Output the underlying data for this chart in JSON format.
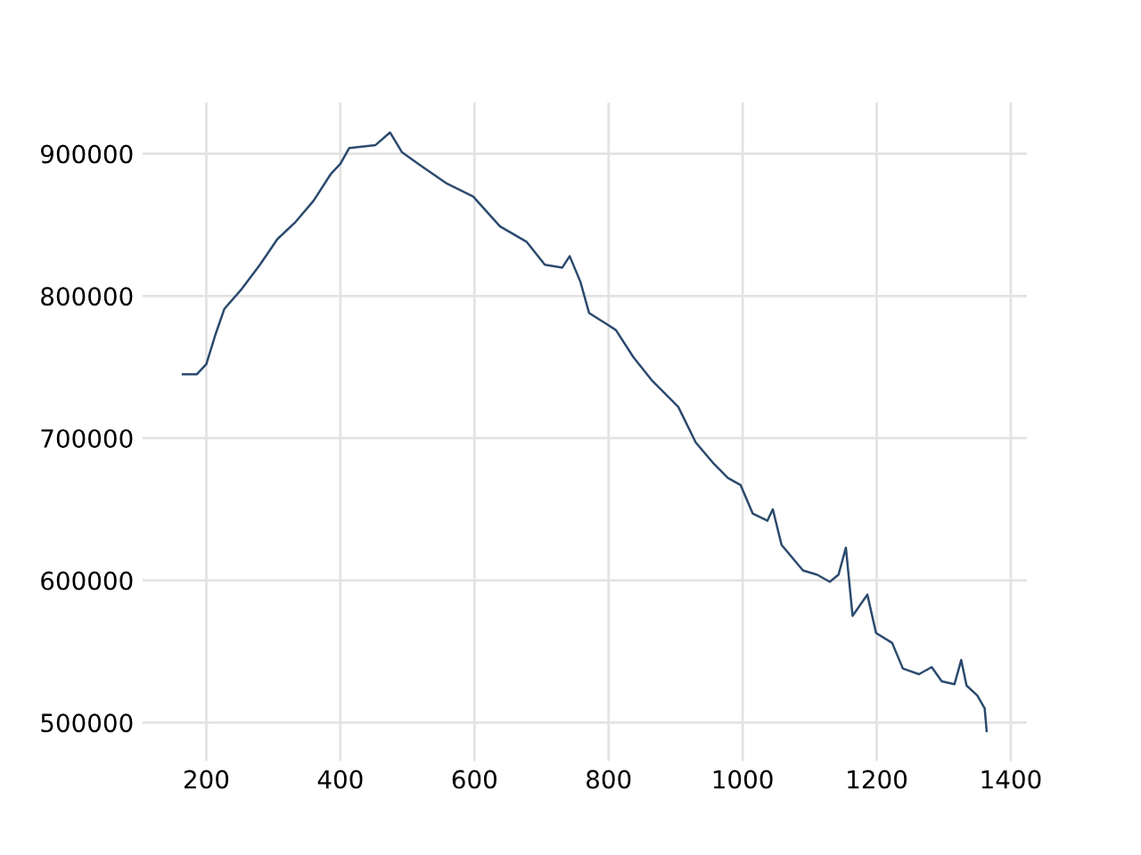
{
  "chart_data": {
    "type": "line",
    "x": [
      165,
      186,
      200,
      213,
      227,
      253,
      280,
      306,
      333,
      360,
      386,
      400,
      413,
      452,
      474,
      492,
      519,
      559,
      598,
      638,
      678,
      705,
      731,
      742,
      758,
      771,
      798,
      811,
      837,
      864,
      904,
      930,
      957,
      978,
      997,
      1015,
      1037,
      1045,
      1058,
      1090,
      1111,
      1130,
      1143,
      1154,
      1164,
      1186,
      1199,
      1223,
      1239,
      1263,
      1282,
      1297,
      1316,
      1326,
      1334,
      1350,
      1361,
      1364
    ],
    "series": [
      {
        "color": "#2b4a6e",
        "values": [
          745000,
          745000,
          752000,
          772000,
          791000,
          805000,
          822000,
          840000,
          852000,
          867000,
          886000,
          893000,
          904000,
          906000,
          915000,
          901000,
          892000,
          879000,
          870000,
          849000,
          838000,
          822000,
          820000,
          828000,
          810000,
          788000,
          780000,
          776000,
          757000,
          741000,
          722000,
          697000,
          682000,
          672000,
          667000,
          647000,
          642000,
          650000,
          625000,
          607000,
          604000,
          599000,
          604000,
          623000,
          575000,
          590000,
          563000,
          556000,
          538000,
          534000,
          539000,
          529000,
          527000,
          544000,
          526000,
          519000,
          510000,
          494000
        ]
      }
    ],
    "xlim": [
      105,
      1424
    ],
    "ylim": [
      473000,
      936000
    ],
    "xticks": [
      200,
      400,
      600,
      800,
      1000,
      1200,
      1400
    ],
    "yticks": [
      500000,
      600000,
      700000,
      800000,
      900000
    ],
    "grid": true
  }
}
